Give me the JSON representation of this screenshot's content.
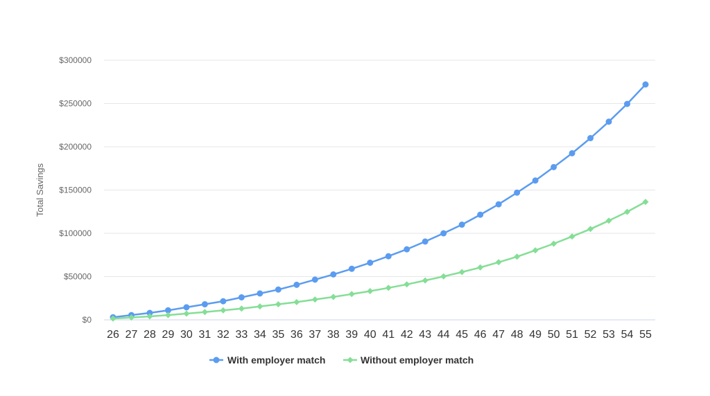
{
  "chart_data": {
    "type": "line",
    "title": "",
    "xlabel": "",
    "ylabel": "Total Savings",
    "categories": [
      "26",
      "27",
      "28",
      "29",
      "30",
      "31",
      "32",
      "33",
      "34",
      "35",
      "36",
      "37",
      "38",
      "39",
      "40",
      "41",
      "42",
      "43",
      "44",
      "45",
      "46",
      "47",
      "48",
      "49",
      "50",
      "51",
      "52",
      "53",
      "54",
      "55"
    ],
    "ylim": [
      0,
      300000
    ],
    "yticks": [
      0,
      50000,
      100000,
      150000,
      200000,
      250000,
      300000
    ],
    "ytick_labels": [
      "$0",
      "$50000",
      "$100000",
      "$150000",
      "$200000",
      "$250000",
      "$300000"
    ],
    "grid": true,
    "legend_position": "bottom",
    "series": [
      {
        "name": "With employer match",
        "color": "#5b9cf0",
        "marker": "circle",
        "values": [
          3000,
          5500,
          8000,
          11000,
          14500,
          18000,
          21500,
          26000,
          30500,
          35000,
          40500,
          46500,
          52500,
          59000,
          66000,
          73500,
          81500,
          90500,
          100000,
          110000,
          121500,
          133500,
          147000,
          161000,
          176500,
          192500,
          210000,
          229000,
          249500,
          272000
        ]
      },
      {
        "name": "Without employer match",
        "color": "#85de96",
        "marker": "diamond",
        "values": [
          1500,
          2700,
          4000,
          5500,
          7200,
          9000,
          11000,
          13000,
          15500,
          18000,
          20500,
          23500,
          26500,
          29800,
          33200,
          37000,
          41000,
          45500,
          50200,
          55200,
          60600,
          66600,
          73000,
          80300,
          88000,
          96300,
          105000,
          114600,
          124800,
          136300
        ]
      }
    ]
  }
}
